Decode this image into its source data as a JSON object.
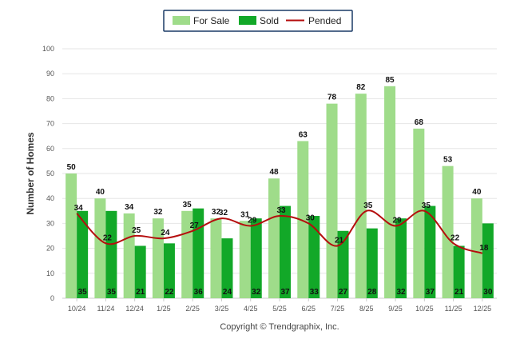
{
  "chart_data": {
    "type": "bar",
    "categories": [
      "10/24",
      "11/24",
      "12/24",
      "1/25",
      "2/25",
      "3/25",
      "4/25",
      "5/25",
      "6/25",
      "7/25",
      "8/25",
      "9/25",
      "10/25",
      "11/25",
      "12/25"
    ],
    "series": [
      {
        "name": "For Sale",
        "type": "bar",
        "color": "#9fdc8a",
        "values": [
          50,
          40,
          34,
          32,
          35,
          32,
          31,
          48,
          63,
          78,
          82,
          85,
          68,
          53,
          40
        ]
      },
      {
        "name": "Sold",
        "type": "bar",
        "color": "#12a828",
        "values": [
          35,
          35,
          21,
          22,
          36,
          24,
          32,
          37,
          33,
          27,
          28,
          32,
          37,
          21,
          30
        ]
      },
      {
        "name": "Pended",
        "type": "line",
        "color": "#b50d0d",
        "values": [
          34,
          22,
          25,
          24,
          27,
          32,
          29,
          33,
          30,
          21,
          35,
          29,
          35,
          22,
          18
        ]
      }
    ],
    "ylabel": "Number of Homes",
    "ylim": [
      0,
      100
    ],
    "yticks": [
      "0",
      "10",
      "20",
      "30",
      "40",
      "50",
      "60",
      "70",
      "80",
      "90",
      "100"
    ],
    "grid": true,
    "legend_position": "top-center"
  },
  "footer": {
    "copyright": "Copyright © Trendgraphix, Inc."
  }
}
